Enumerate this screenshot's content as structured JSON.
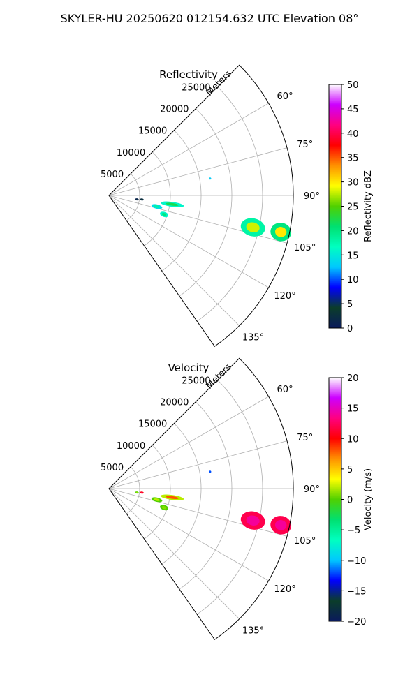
{
  "suptitle": "SKYLER-HU  20250620  012154.632 UTC Elevation 08°",
  "chart_data": [
    {
      "type": "heatmap",
      "subtype": "polar-sector-ppi",
      "title": "Reflectivity",
      "range_label": "Meters",
      "range_ticks": [
        5000,
        10000,
        15000,
        20000,
        25000
      ],
      "angle_ticks": [
        "60°",
        "75°",
        "90°",
        "105°",
        "120°",
        "135°"
      ],
      "angle_tick_values": [
        60,
        75,
        90,
        105,
        120,
        135
      ],
      "theta_range_deg": [
        45,
        145
      ],
      "r_range_m": [
        0,
        30000
      ],
      "grid": true,
      "colorbar": {
        "label": "Reflectivity dBZ",
        "min": 0,
        "max": 50,
        "ticks": [
          "0",
          "5",
          "10",
          "15",
          "20",
          "25",
          "30",
          "35",
          "40",
          "45",
          "50"
        ],
        "tick_values": [
          0,
          5,
          10,
          15,
          20,
          25,
          30,
          35,
          40,
          45,
          50
        ],
        "stops": [
          "#0a1a5c",
          "#0b3d2a",
          "#0000ff",
          "#00c8ff",
          "#00ffc0",
          "#00e070",
          "#50d000",
          "#ffff00",
          "#ff9000",
          "#ff0000",
          "#ff0080",
          "#cc00ff",
          "#ffffff"
        ]
      },
      "echoes": [
        {
          "theta": 102.5,
          "r": 24000,
          "dr": 2000,
          "dtheta": 3.5,
          "value": 28,
          "edge": 18
        },
        {
          "theta": 102.0,
          "r": 28600,
          "dr": 1700,
          "dtheta": 3.0,
          "value": 30,
          "edge": 20
        },
        {
          "theta": 98.0,
          "r": 10400,
          "dr": 1900,
          "dtheta": 2.2,
          "value": 22,
          "edge": 16
        },
        {
          "theta": 103.0,
          "r": 8000,
          "dr": 900,
          "dtheta": 2.5,
          "value": 18,
          "edge": 14
        },
        {
          "theta": 109.0,
          "r": 9500,
          "dr": 700,
          "dtheta": 2.5,
          "value": 20,
          "edge": 16
        },
        {
          "theta": 80.5,
          "r": 16700,
          "dr": 150,
          "dtheta": 0.6,
          "value": 14,
          "edge": 12
        },
        {
          "theta": 97.0,
          "r": 5400,
          "dr": 300,
          "dtheta": 1.0,
          "value": 3,
          "edge": 2
        },
        {
          "theta": 98.0,
          "r": 4600,
          "dr": 300,
          "dtheta": 1.0,
          "value": 2,
          "edge": 1
        }
      ]
    },
    {
      "type": "heatmap",
      "subtype": "polar-sector-ppi",
      "title": "Velocity",
      "range_label": "Meters",
      "range_ticks": [
        5000,
        10000,
        15000,
        20000,
        25000
      ],
      "angle_ticks": [
        "60°",
        "75°",
        "90°",
        "105°",
        "120°",
        "135°"
      ],
      "angle_tick_values": [
        60,
        75,
        90,
        105,
        120,
        135
      ],
      "theta_range_deg": [
        45,
        145
      ],
      "r_range_m": [
        0,
        30000
      ],
      "grid": true,
      "colorbar": {
        "label": "Velocity (m/s)",
        "min": -20,
        "max": 20,
        "ticks": [
          "−20",
          "−15",
          "−10",
          "−5",
          "0",
          "5",
          "10",
          "15",
          "20"
        ],
        "tick_values": [
          -20,
          -15,
          -10,
          -5,
          0,
          5,
          10,
          15,
          20
        ],
        "stops": [
          "#0a1a5c",
          "#0b3d2a",
          "#0000ff",
          "#00c8ff",
          "#00ffc0",
          "#00e070",
          "#50d000",
          "#ffff00",
          "#ff9000",
          "#ff0000",
          "#ff0080",
          "#cc00ff",
          "#ffffff"
        ]
      },
      "echoes": [
        {
          "theta": 102.5,
          "r": 24000,
          "dr": 2000,
          "dtheta": 3.5,
          "value": 14,
          "edge": 12
        },
        {
          "theta": 102.0,
          "r": 28600,
          "dr": 1700,
          "dtheta": 3.0,
          "value": 14,
          "edge": 12
        },
        {
          "theta": 98.0,
          "r": 10400,
          "dr": 1900,
          "dtheta": 2.2,
          "value": 8,
          "edge": 2
        },
        {
          "theta": 103.0,
          "r": 8000,
          "dr": 900,
          "dtheta": 2.5,
          "value": 2,
          "edge": 0
        },
        {
          "theta": 109.0,
          "r": 9500,
          "dr": 700,
          "dtheta": 2.5,
          "value": 1,
          "edge": 0
        },
        {
          "theta": 80.5,
          "r": 16700,
          "dr": 150,
          "dtheta": 0.6,
          "value": -12,
          "edge": -12
        },
        {
          "theta": 97.0,
          "r": 5400,
          "dr": 300,
          "dtheta": 1.0,
          "value": 12,
          "edge": 10
        },
        {
          "theta": 98.0,
          "r": 4600,
          "dr": 300,
          "dtheta": 1.0,
          "value": 1,
          "edge": 0
        }
      ]
    }
  ]
}
